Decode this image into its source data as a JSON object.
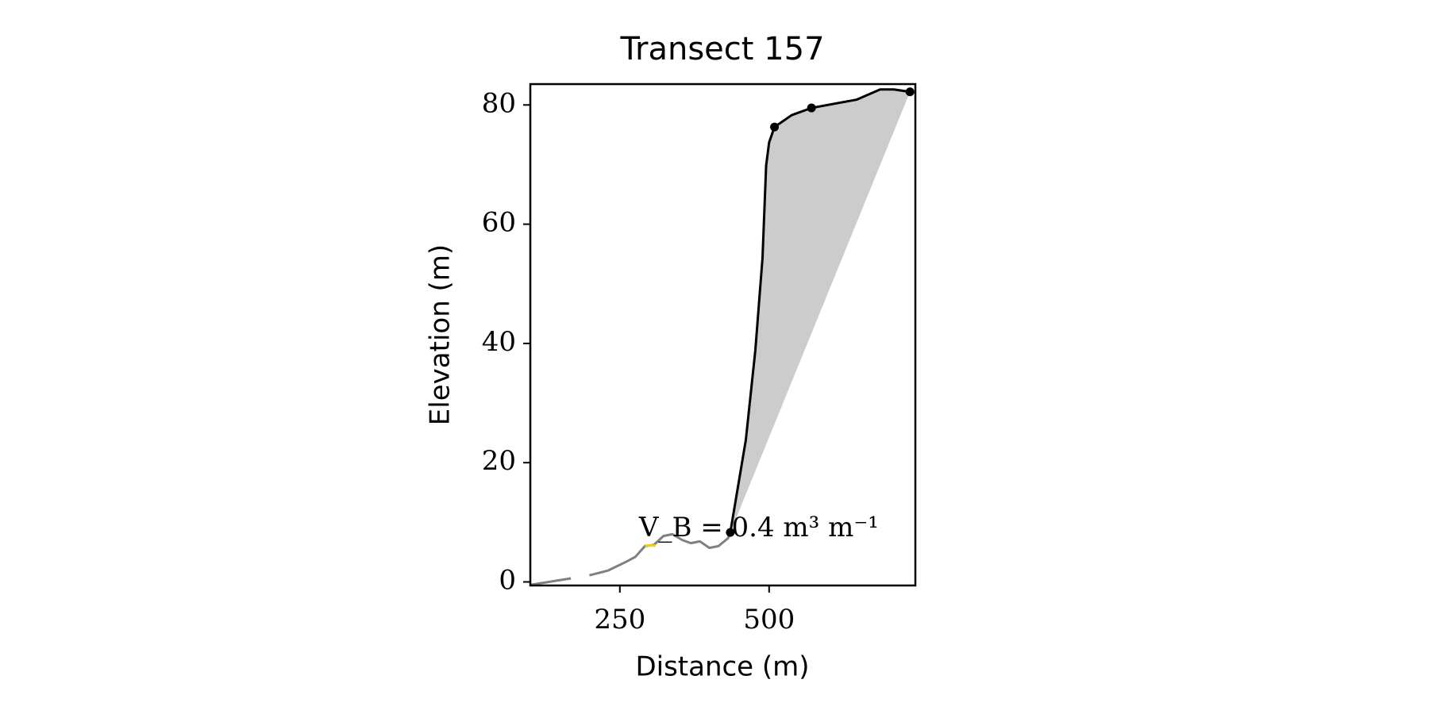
{
  "chart_data": {
    "type": "profile",
    "title": "Transect 157",
    "xlabel": "Distance (m)",
    "ylabel": "Elevation (m)",
    "xlim": [
      100,
      745
    ],
    "ylim": [
      -0.6,
      83.5
    ],
    "xticks": [
      250,
      500
    ],
    "yticks": [
      0,
      20,
      40,
      60,
      80
    ],
    "grid": false,
    "series": [
      {
        "color": "#808080",
        "x": [
          100,
          168,
          null,
          199,
          230,
          261,
          276,
          292,
          307,
          323,
          338,
          355,
          369,
          384,
          400,
          415,
          431,
          435
        ],
        "values": [
          -0.5,
          0.6,
          null,
          1.1,
          1.9,
          3.4,
          4.2,
          6.0,
          6.2,
          7.7,
          8.0,
          7.0,
          6.5,
          6.8,
          5.7,
          6.0,
          7.3,
          8.3
        ]
      },
      {
        "color": "#f0d000",
        "x": [
          292,
          310
        ],
        "values": [
          6.1,
          6.1
        ]
      },
      {
        "color": "#000000",
        "x": [
          435,
          461,
          477,
          489,
          495,
          500,
          509,
          538,
          571,
          647,
          686,
          709,
          736
        ],
        "values": [
          8.3,
          23.8,
          38.9,
          54.4,
          69.8,
          73.7,
          76.3,
          78.3,
          79.5,
          80.9,
          82.6,
          82.6,
          82.2
        ]
      }
    ],
    "fill_color": "#cccccc",
    "points": {
      "color": "#000000",
      "x": [
        435,
        509,
        571,
        736
      ],
      "values": [
        8.3,
        76.3,
        79.5,
        82.2
      ]
    },
    "annotation": "V_B = 0.4 m³ m⁻¹"
  }
}
